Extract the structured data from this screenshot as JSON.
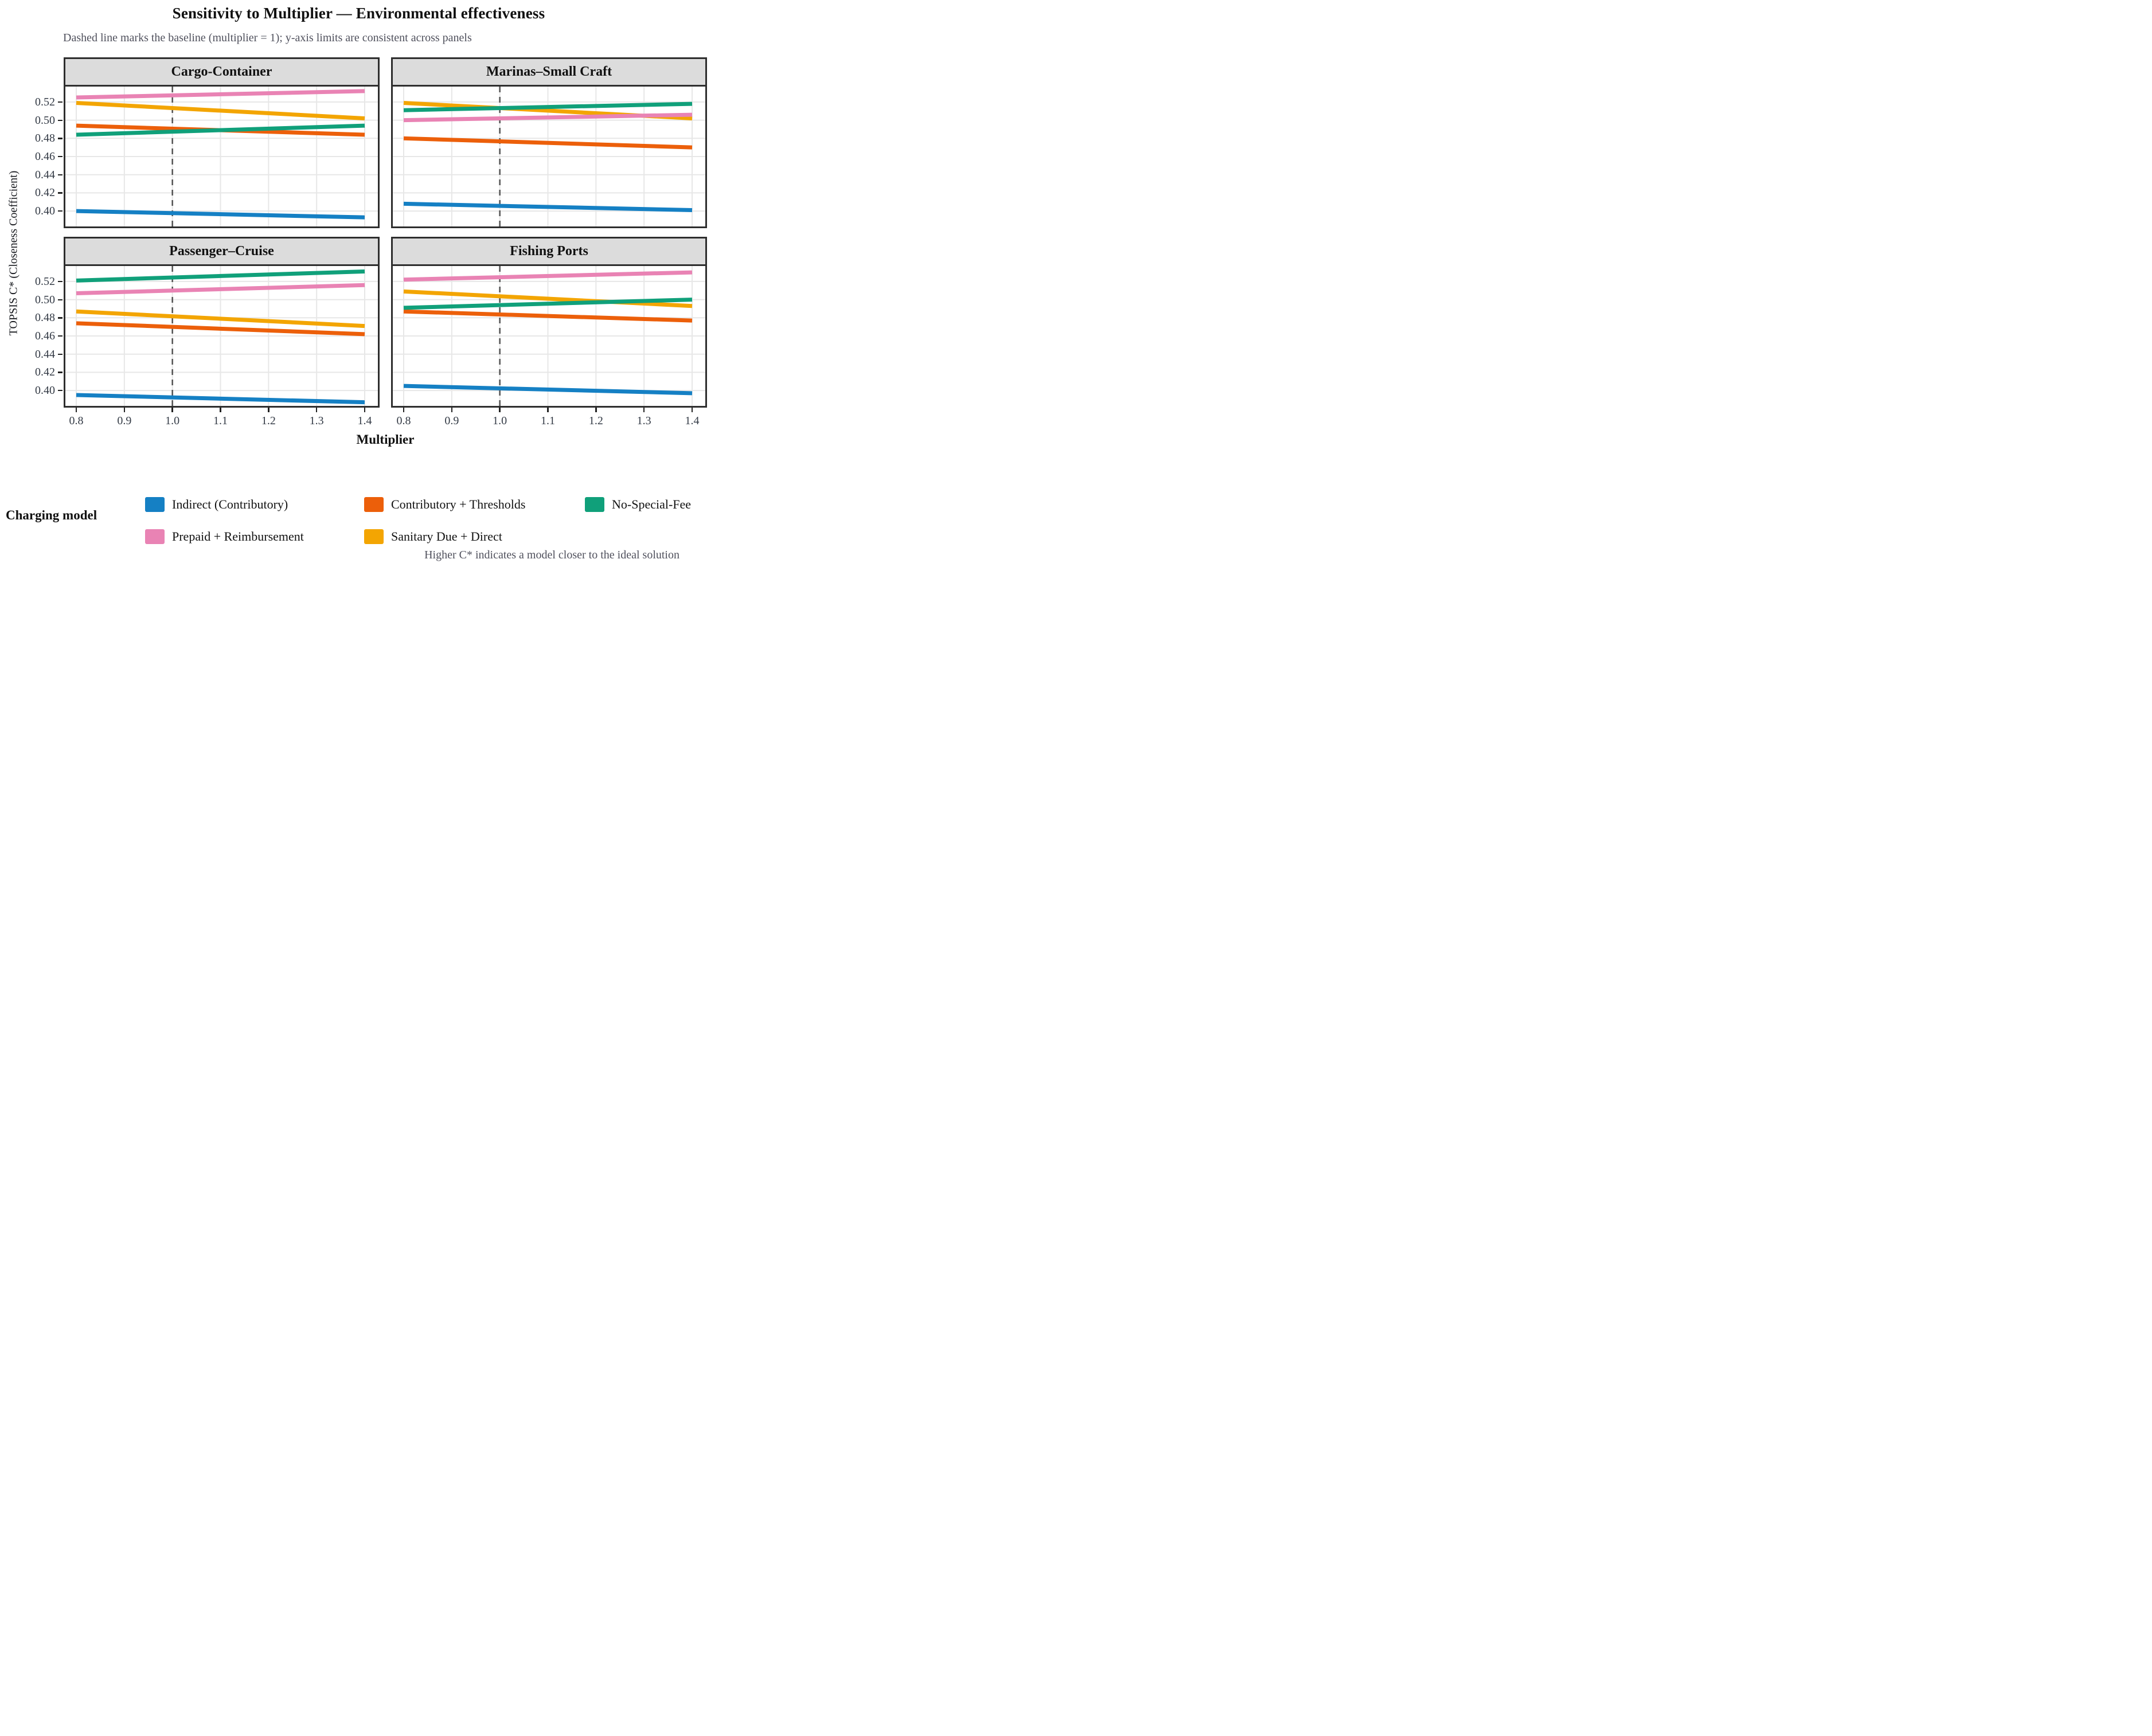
{
  "title": "Sensitivity to Multiplier — Environmental effectiveness",
  "subtitle": "Dashed line marks the baseline (multiplier = 1); y-axis limits are consistent across panels",
  "caption": "Higher C* indicates a model closer to the ideal solution",
  "axes": {
    "x_label": "Multiplier",
    "y_label": "TOPSIS C* (Closeness Coefficient)",
    "x_ticks": [
      0.8,
      0.9,
      1.0,
      1.1,
      1.2,
      1.3,
      1.4
    ],
    "x_tick_labels": [
      "0.8",
      "0.9",
      "1.0",
      "1.1",
      "1.2",
      "1.3",
      "1.4"
    ],
    "y_ticks": [
      0.52,
      0.5,
      0.48,
      0.46,
      0.44,
      0.42,
      0.4
    ],
    "y_tick_labels": [
      "0.52",
      "0.50",
      "0.48",
      "0.46",
      "0.44",
      "0.42",
      "0.40"
    ]
  },
  "colors": {
    "indirect": "#1580c4",
    "contributory": "#ec5f0a",
    "sanitary": "#f3a502",
    "prepaid": "#e983b4",
    "nospecial": "#10a07a",
    "baseline": "#575757",
    "grid": "#e7e7e7",
    "panel_border": "#2e2e2e",
    "strip_bg": "#dcdcdc"
  },
  "legend": {
    "title": "Charging model",
    "items": [
      {
        "key": "indirect",
        "label": "Indirect (Contributory)"
      },
      {
        "key": "contributory",
        "label": "Contributory + Thresholds"
      },
      {
        "key": "nospecial",
        "label": "No-Special-Fee"
      },
      {
        "key": "prepaid",
        "label": "Prepaid + Reimbursement"
      },
      {
        "key": "sanitary",
        "label": "Sanitary Due + Direct"
      }
    ]
  },
  "chart_data": {
    "type": "line",
    "title": "Sensitivity to Multiplier — Environmental effectiveness",
    "xlabel": "Multiplier",
    "ylabel": "TOPSIS C* (Closeness Coefficient)",
    "x": [
      0.8,
      1.4
    ],
    "xlim": [
      0.8,
      1.4
    ],
    "ylim": [
      0.383,
      0.537
    ],
    "baseline_x": 1.0,
    "grid": true,
    "legend_position": "bottom",
    "panels": [
      {
        "title": "Cargo-Container",
        "series": [
          {
            "key": "indirect",
            "name": "Indirect (Contributory)",
            "values": [
              0.4,
              0.393
            ]
          },
          {
            "key": "contributory",
            "name": "Contributory + Thresholds",
            "values": [
              0.494,
              0.484
            ]
          },
          {
            "key": "sanitary",
            "name": "Sanitary Due + Direct",
            "values": [
              0.519,
              0.502
            ]
          },
          {
            "key": "prepaid",
            "name": "Prepaid + Reimbursement",
            "values": [
              0.525,
              0.532
            ]
          },
          {
            "key": "nospecial",
            "name": "No-Special-Fee",
            "values": [
              0.484,
              0.494
            ]
          }
        ]
      },
      {
        "title": "Marinas–Small Craft",
        "series": [
          {
            "key": "indirect",
            "name": "Indirect (Contributory)",
            "values": [
              0.408,
              0.401
            ]
          },
          {
            "key": "contributory",
            "name": "Contributory + Thresholds",
            "values": [
              0.48,
              0.47
            ]
          },
          {
            "key": "sanitary",
            "name": "Sanitary Due + Direct",
            "values": [
              0.519,
              0.502
            ]
          },
          {
            "key": "prepaid",
            "name": "Prepaid + Reimbursement",
            "values": [
              0.5,
              0.506
            ]
          },
          {
            "key": "nospecial",
            "name": "No-Special-Fee",
            "values": [
              0.511,
              0.518
            ]
          }
        ]
      },
      {
        "title": "Passenger–Cruise",
        "series": [
          {
            "key": "indirect",
            "name": "Indirect (Contributory)",
            "values": [
              0.395,
              0.387
            ]
          },
          {
            "key": "contributory",
            "name": "Contributory + Thresholds",
            "values": [
              0.474,
              0.462
            ]
          },
          {
            "key": "sanitary",
            "name": "Sanitary Due + Direct",
            "values": [
              0.487,
              0.471
            ]
          },
          {
            "key": "prepaid",
            "name": "Prepaid + Reimbursement",
            "values": [
              0.507,
              0.516
            ]
          },
          {
            "key": "nospecial",
            "name": "No-Special-Fee",
            "values": [
              0.521,
              0.531
            ]
          }
        ]
      },
      {
        "title": "Fishing Ports",
        "series": [
          {
            "key": "indirect",
            "name": "Indirect (Contributory)",
            "values": [
              0.405,
              0.397
            ]
          },
          {
            "key": "contributory",
            "name": "Contributory + Thresholds",
            "values": [
              0.487,
              0.477
            ]
          },
          {
            "key": "sanitary",
            "name": "Sanitary Due + Direct",
            "values": [
              0.509,
              0.493
            ]
          },
          {
            "key": "prepaid",
            "name": "Prepaid + Reimbursement",
            "values": [
              0.522,
              0.53
            ]
          },
          {
            "key": "nospecial",
            "name": "No-Special-Fee",
            "values": [
              0.491,
              0.5
            ]
          }
        ]
      }
    ]
  }
}
